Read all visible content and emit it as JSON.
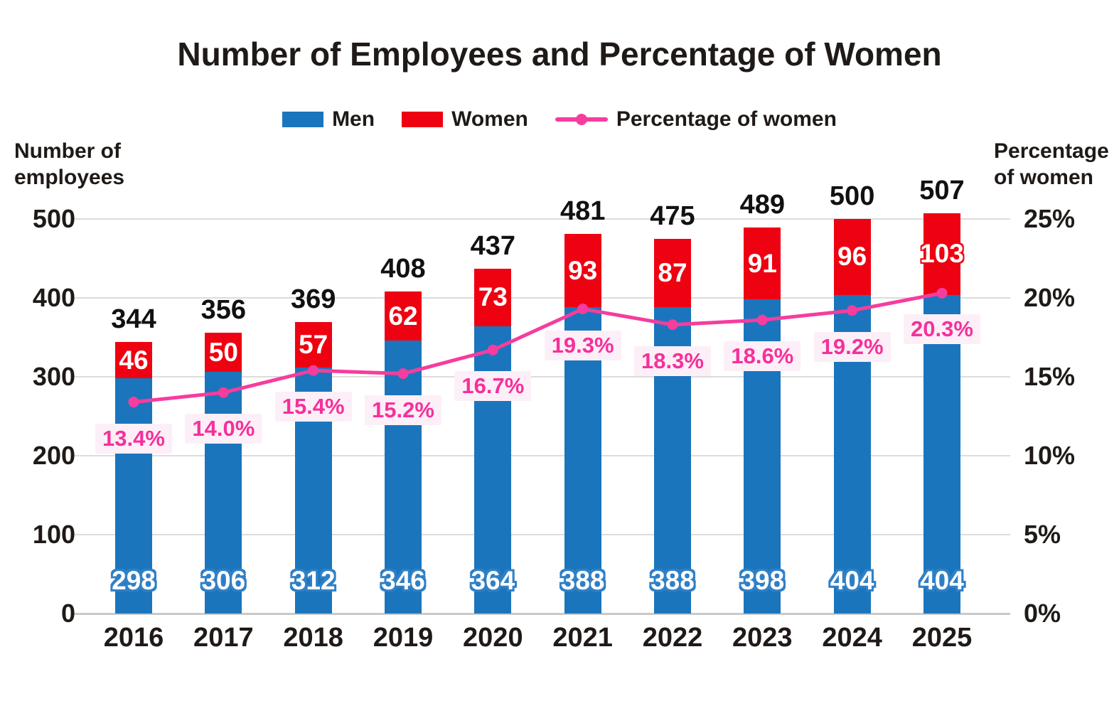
{
  "title": "Number of Employees and Percentage of Women",
  "legend": [
    {
      "label": "Men",
      "color": "#1b75bc",
      "type": "box"
    },
    {
      "label": "Women",
      "color": "#ee0211",
      "type": "box"
    },
    {
      "label": "Percentage of women",
      "color": "#f53d9e",
      "type": "line"
    }
  ],
  "left_axis": {
    "title_line1": "Number of",
    "title_line2": "employees",
    "ticks": [
      "500",
      "400",
      "300",
      "200",
      "100",
      "0"
    ]
  },
  "right_axis": {
    "title_line1": "Percentage",
    "title_line2": "of women",
    "ticks": [
      "25%",
      "20%",
      "15%",
      "10%",
      "5%",
      "0%"
    ]
  },
  "chart_data": {
    "type": "bar+line",
    "title": "Number of Employees and Percentage of Women",
    "categories": [
      "2016",
      "2017",
      "2018",
      "2019",
      "2020",
      "2021",
      "2022",
      "2023",
      "2024",
      "2025"
    ],
    "series": [
      {
        "name": "Men",
        "type": "bar",
        "stack": true,
        "axis": "left",
        "color": "#1b75bc",
        "values": [
          298,
          306,
          312,
          346,
          364,
          388,
          388,
          398,
          404,
          404
        ]
      },
      {
        "name": "Women",
        "type": "bar",
        "stack": true,
        "axis": "left",
        "color": "#ee0211",
        "values": [
          46,
          50,
          57,
          62,
          73,
          93,
          87,
          91,
          96,
          103
        ]
      },
      {
        "name": "Percentage of women",
        "type": "line",
        "axis": "right",
        "color": "#f53d9e",
        "values": [
          13.4,
          14.0,
          15.4,
          15.2,
          16.7,
          19.3,
          18.3,
          18.6,
          19.2,
          20.3
        ]
      }
    ],
    "totals": [
      344,
      356,
      369,
      408,
      437,
      481,
      475,
      489,
      500,
      507
    ],
    "pct_labels": [
      "13.4%",
      "14.0%",
      "15.4%",
      "15.2%",
      "16.7%",
      "19.3%",
      "18.3%",
      "18.6%",
      "19.2%",
      "20.3%"
    ],
    "left_ylabel": "Number of employees",
    "right_ylabel": "Percentage of women",
    "left_ylim": [
      0,
      500
    ],
    "right_ylim": [
      0,
      25
    ],
    "grid": true,
    "legend_position": "top",
    "pct_label_bg": "#fdeff8",
    "pct_label_color": "#f5309b",
    "gridline_color": "#dcdcdc"
  }
}
